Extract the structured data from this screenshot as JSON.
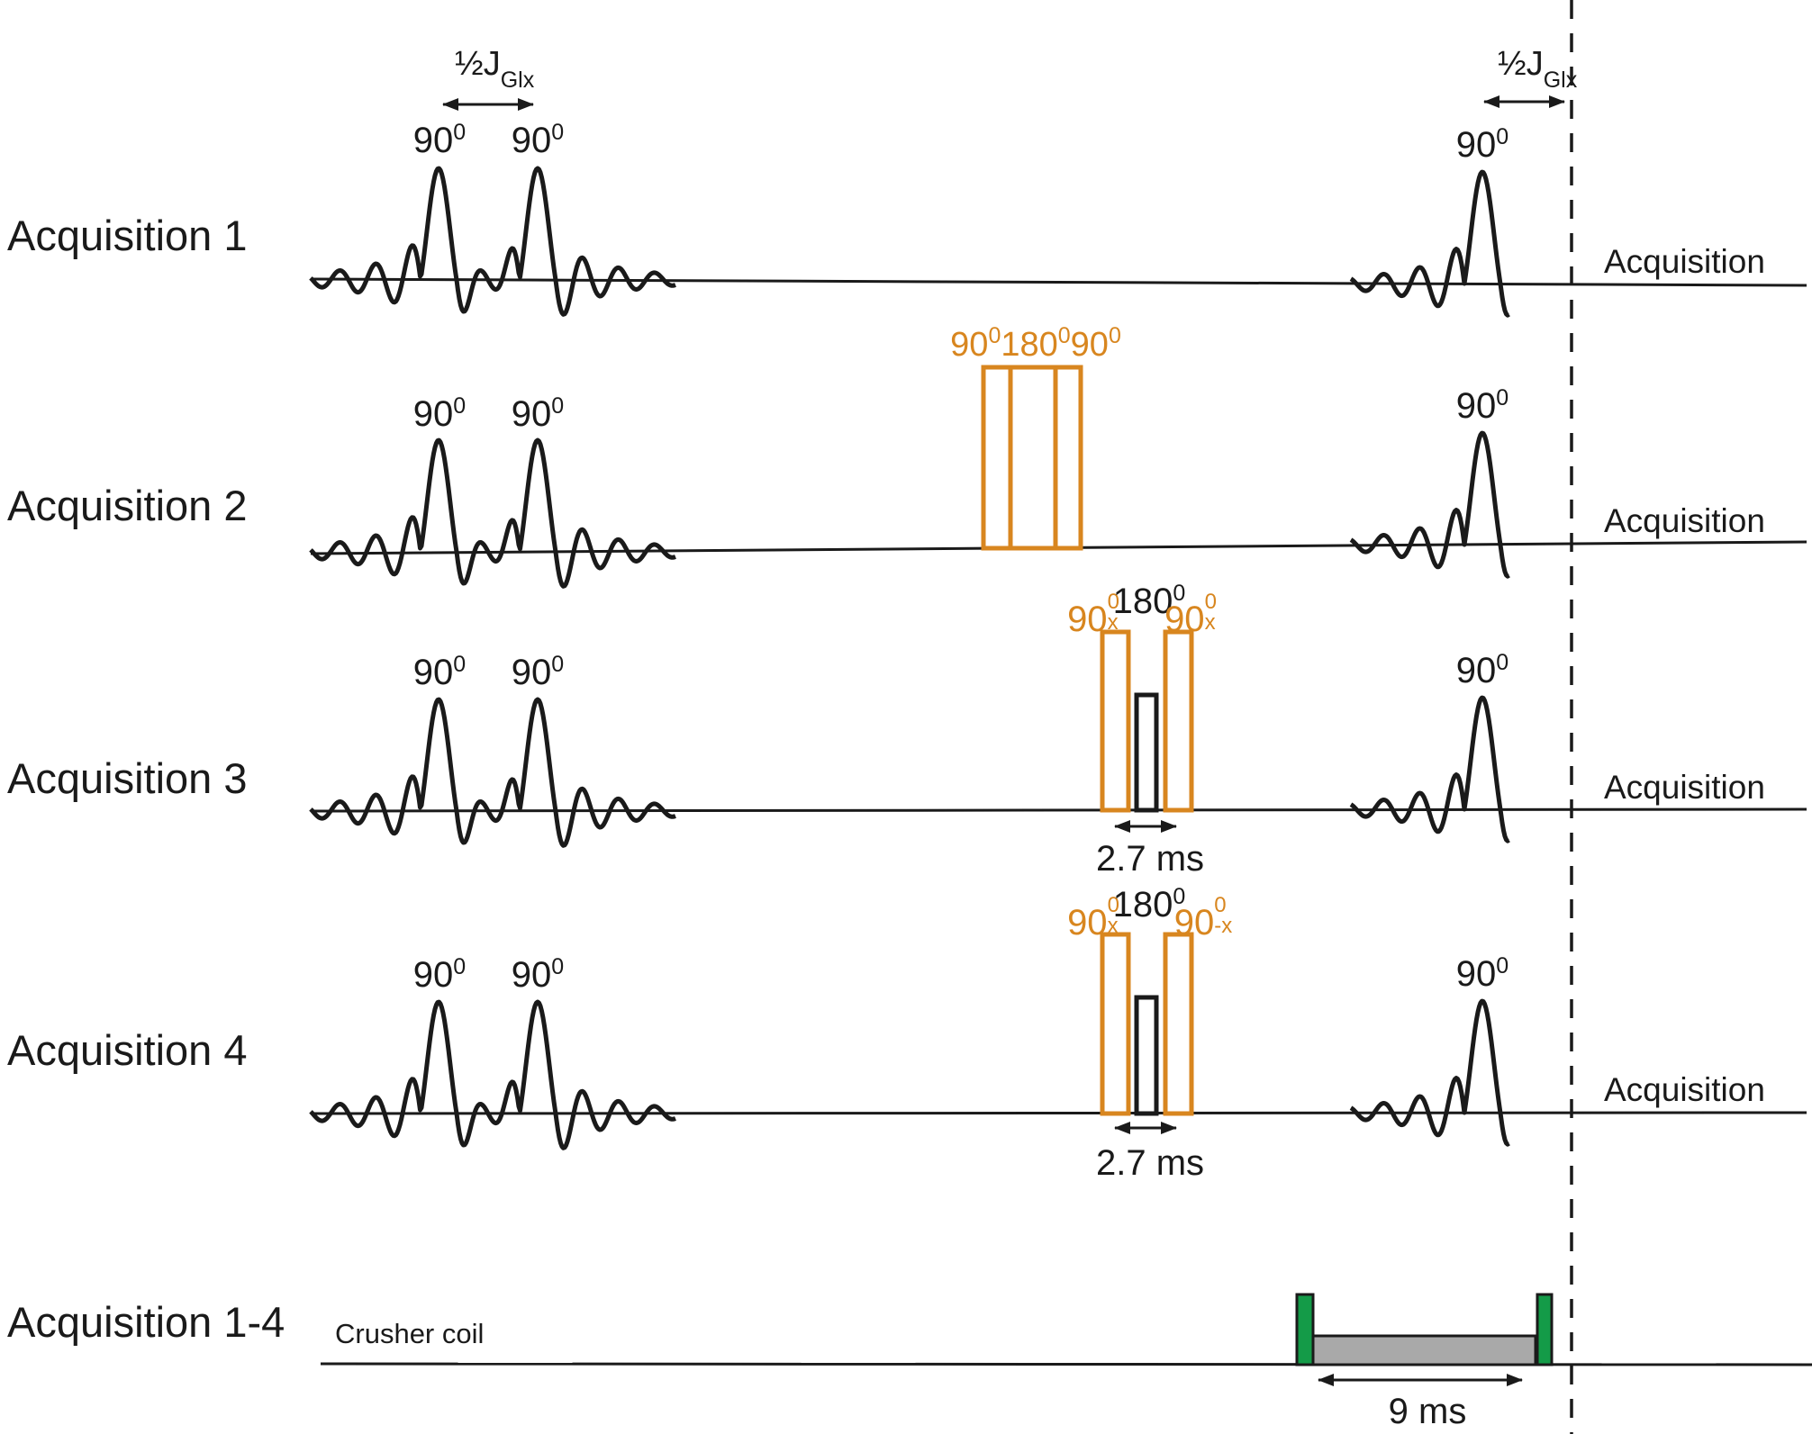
{
  "colors": {
    "orange": "#D8861F",
    "green": "#149B48",
    "gray": "#A9A9A9",
    "ink": "#1A1A1A"
  },
  "row1": {
    "label": "Acquisition 1",
    "acquisition": "Acquisition",
    "jleft": {
      "base": "½J",
      "sub": "Glx"
    },
    "jright": {
      "base": "½J",
      "sub": "Glx"
    },
    "p1": {
      "base": "90",
      "sup": "0"
    },
    "p2": {
      "base": "90",
      "sup": "0"
    },
    "p3": {
      "base": "90",
      "sup": "0"
    }
  },
  "row2": {
    "label": "Acquisition 2",
    "acquisition": "Acquisition",
    "p1": {
      "base": "90",
      "sup": "0"
    },
    "p2": {
      "base": "90",
      "sup": "0"
    },
    "p3": {
      "base": "90",
      "sup": "0"
    },
    "composite": {
      "s1": {
        "base": "90",
        "sup": "0"
      },
      "s2": {
        "base": "180",
        "sup": "0"
      },
      "s3": {
        "base": "90",
        "sup": "0"
      }
    }
  },
  "row3": {
    "label": "Acquisition 3",
    "acquisition": "Acquisition",
    "p1": {
      "base": "90",
      "sup": "0"
    },
    "p2": {
      "base": "90",
      "sup": "0"
    },
    "p3": {
      "base": "90",
      "sup": "0"
    },
    "m1": {
      "base": "90",
      "sup": "0",
      "sub": "x"
    },
    "m2": {
      "base": "180",
      "sup": "0"
    },
    "m3": {
      "base": "90",
      "sup": "0",
      "sub": "x"
    },
    "duration": "2.7 ms"
  },
  "row4": {
    "label": "Acquisition 4",
    "acquisition": "Acquisition",
    "p1": {
      "base": "90",
      "sup": "0"
    },
    "p2": {
      "base": "90",
      "sup": "0"
    },
    "p3": {
      "base": "90",
      "sup": "0"
    },
    "m1": {
      "base": "90",
      "sup": "0",
      "sub": "x"
    },
    "m2": {
      "base": "180",
      "sup": "0"
    },
    "m3": {
      "base": "90",
      "sup": "0",
      "sub": "-x"
    },
    "duration": "2.7 ms"
  },
  "row5": {
    "label": "Acquisition 1-4",
    "coil": "Crusher coil",
    "duration": "9 ms"
  }
}
